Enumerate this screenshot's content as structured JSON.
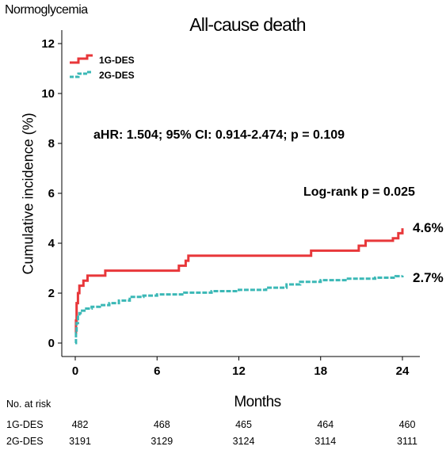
{
  "chart_data": {
    "type": "line",
    "subgroup": "Normoglycemia",
    "title": "All-cause death",
    "xlabel": "Months",
    "ylabel": "Cumulative incidence (%)",
    "xlim": [
      0,
      25
    ],
    "ylim": [
      -0.5,
      12.5
    ],
    "xticks": [
      0,
      6,
      12,
      18,
      24
    ],
    "yticks": [
      0,
      2,
      4,
      6,
      8,
      10,
      12
    ],
    "legend_position": "top-left",
    "series": [
      {
        "name": "1G-DES",
        "color": "#e8373a",
        "style": "solid",
        "end_label": "4.6%",
        "x": [
          0,
          0.05,
          0.1,
          0.2,
          0.3,
          0.4,
          0.6,
          0.9,
          1.3,
          2.2,
          6,
          7.2,
          7.6,
          8.1,
          8.3,
          12,
          16.8,
          17.3,
          20,
          20.8,
          21.3,
          22.5,
          23.3,
          23.7,
          24
        ],
        "y": [
          0.4,
          0.9,
          1.6,
          2.0,
          2.3,
          2.3,
          2.5,
          2.7,
          2.7,
          2.9,
          2.9,
          2.9,
          3.1,
          3.3,
          3.5,
          3.5,
          3.5,
          3.7,
          3.7,
          3.9,
          4.1,
          4.1,
          4.2,
          4.4,
          4.6
        ]
      },
      {
        "name": "2G-DES",
        "color": "#3bb8b6",
        "style": "dashed",
        "end_label": "2.7%",
        "x": [
          0,
          0.05,
          0.1,
          0.2,
          0.3,
          0.5,
          0.8,
          1.2,
          1.8,
          2.5,
          3.2,
          4,
          5,
          6,
          8,
          10,
          12,
          14,
          15.5,
          16.5,
          18,
          20,
          22,
          23.5,
          24
        ],
        "y": [
          0,
          0.4,
          0.8,
          1.1,
          1.2,
          1.3,
          1.38,
          1.45,
          1.52,
          1.6,
          1.7,
          1.85,
          1.9,
          1.95,
          2.02,
          2.08,
          2.13,
          2.22,
          2.35,
          2.45,
          2.52,
          2.58,
          2.62,
          2.68,
          2.7
        ]
      }
    ],
    "annotations": {
      "hr_text": "aHR:  1.504; 95% CI: 0.914-2.474; p = 0.109",
      "logrank_text": "Log-rank p = 0.025"
    },
    "risk_table": {
      "title": "No. at risk",
      "times": [
        0,
        6,
        12,
        18,
        24
      ],
      "rows": [
        {
          "name": "1G-DES",
          "values": [
            "482",
            "468",
            "465",
            "464",
            "460"
          ]
        },
        {
          "name": "2G-DES",
          "values": [
            "3191",
            "3129",
            "3124",
            "3114",
            "3111"
          ]
        }
      ]
    }
  }
}
